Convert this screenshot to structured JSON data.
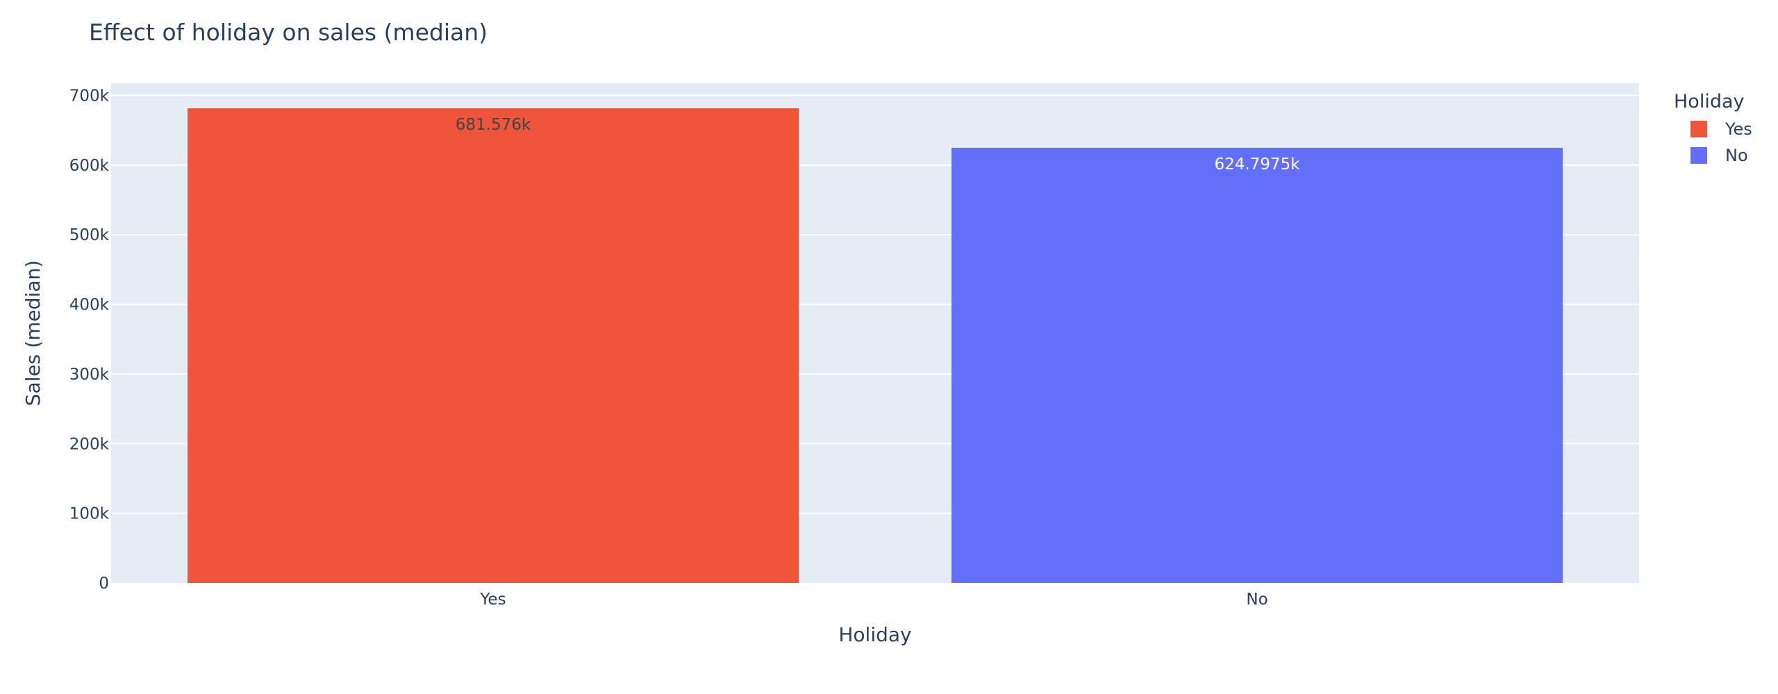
{
  "chart_data": {
    "type": "bar",
    "title": "Effect of holiday on sales (median)",
    "xlabel": "Holiday",
    "ylabel": "Sales (median)",
    "categories": [
      "Yes",
      "No"
    ],
    "values": [
      681576,
      624797.5
    ],
    "data_labels": [
      "681.576k",
      "624.7975k"
    ],
    "colors": [
      "#EF553B",
      "#636EFA"
    ],
    "data_label_colors": [
      "#444444",
      "#ffffff"
    ],
    "ylim": [
      0,
      717448
    ],
    "yticks": [
      {
        "value": 0,
        "label": "0"
      },
      {
        "value": 100000,
        "label": "100k"
      },
      {
        "value": 200000,
        "label": "200k"
      },
      {
        "value": 300000,
        "label": "300k"
      },
      {
        "value": 400000,
        "label": "400k"
      },
      {
        "value": 500000,
        "label": "500k"
      },
      {
        "value": 600000,
        "label": "600k"
      },
      {
        "value": 700000,
        "label": "700k"
      }
    ],
    "grid": true,
    "plot_background": "#E5ECF6",
    "legend": {
      "title": "Holiday",
      "placement": "top-right",
      "entries": [
        {
          "label": "Yes",
          "color": "#EF553B"
        },
        {
          "label": "No",
          "color": "#636EFA"
        }
      ]
    }
  }
}
